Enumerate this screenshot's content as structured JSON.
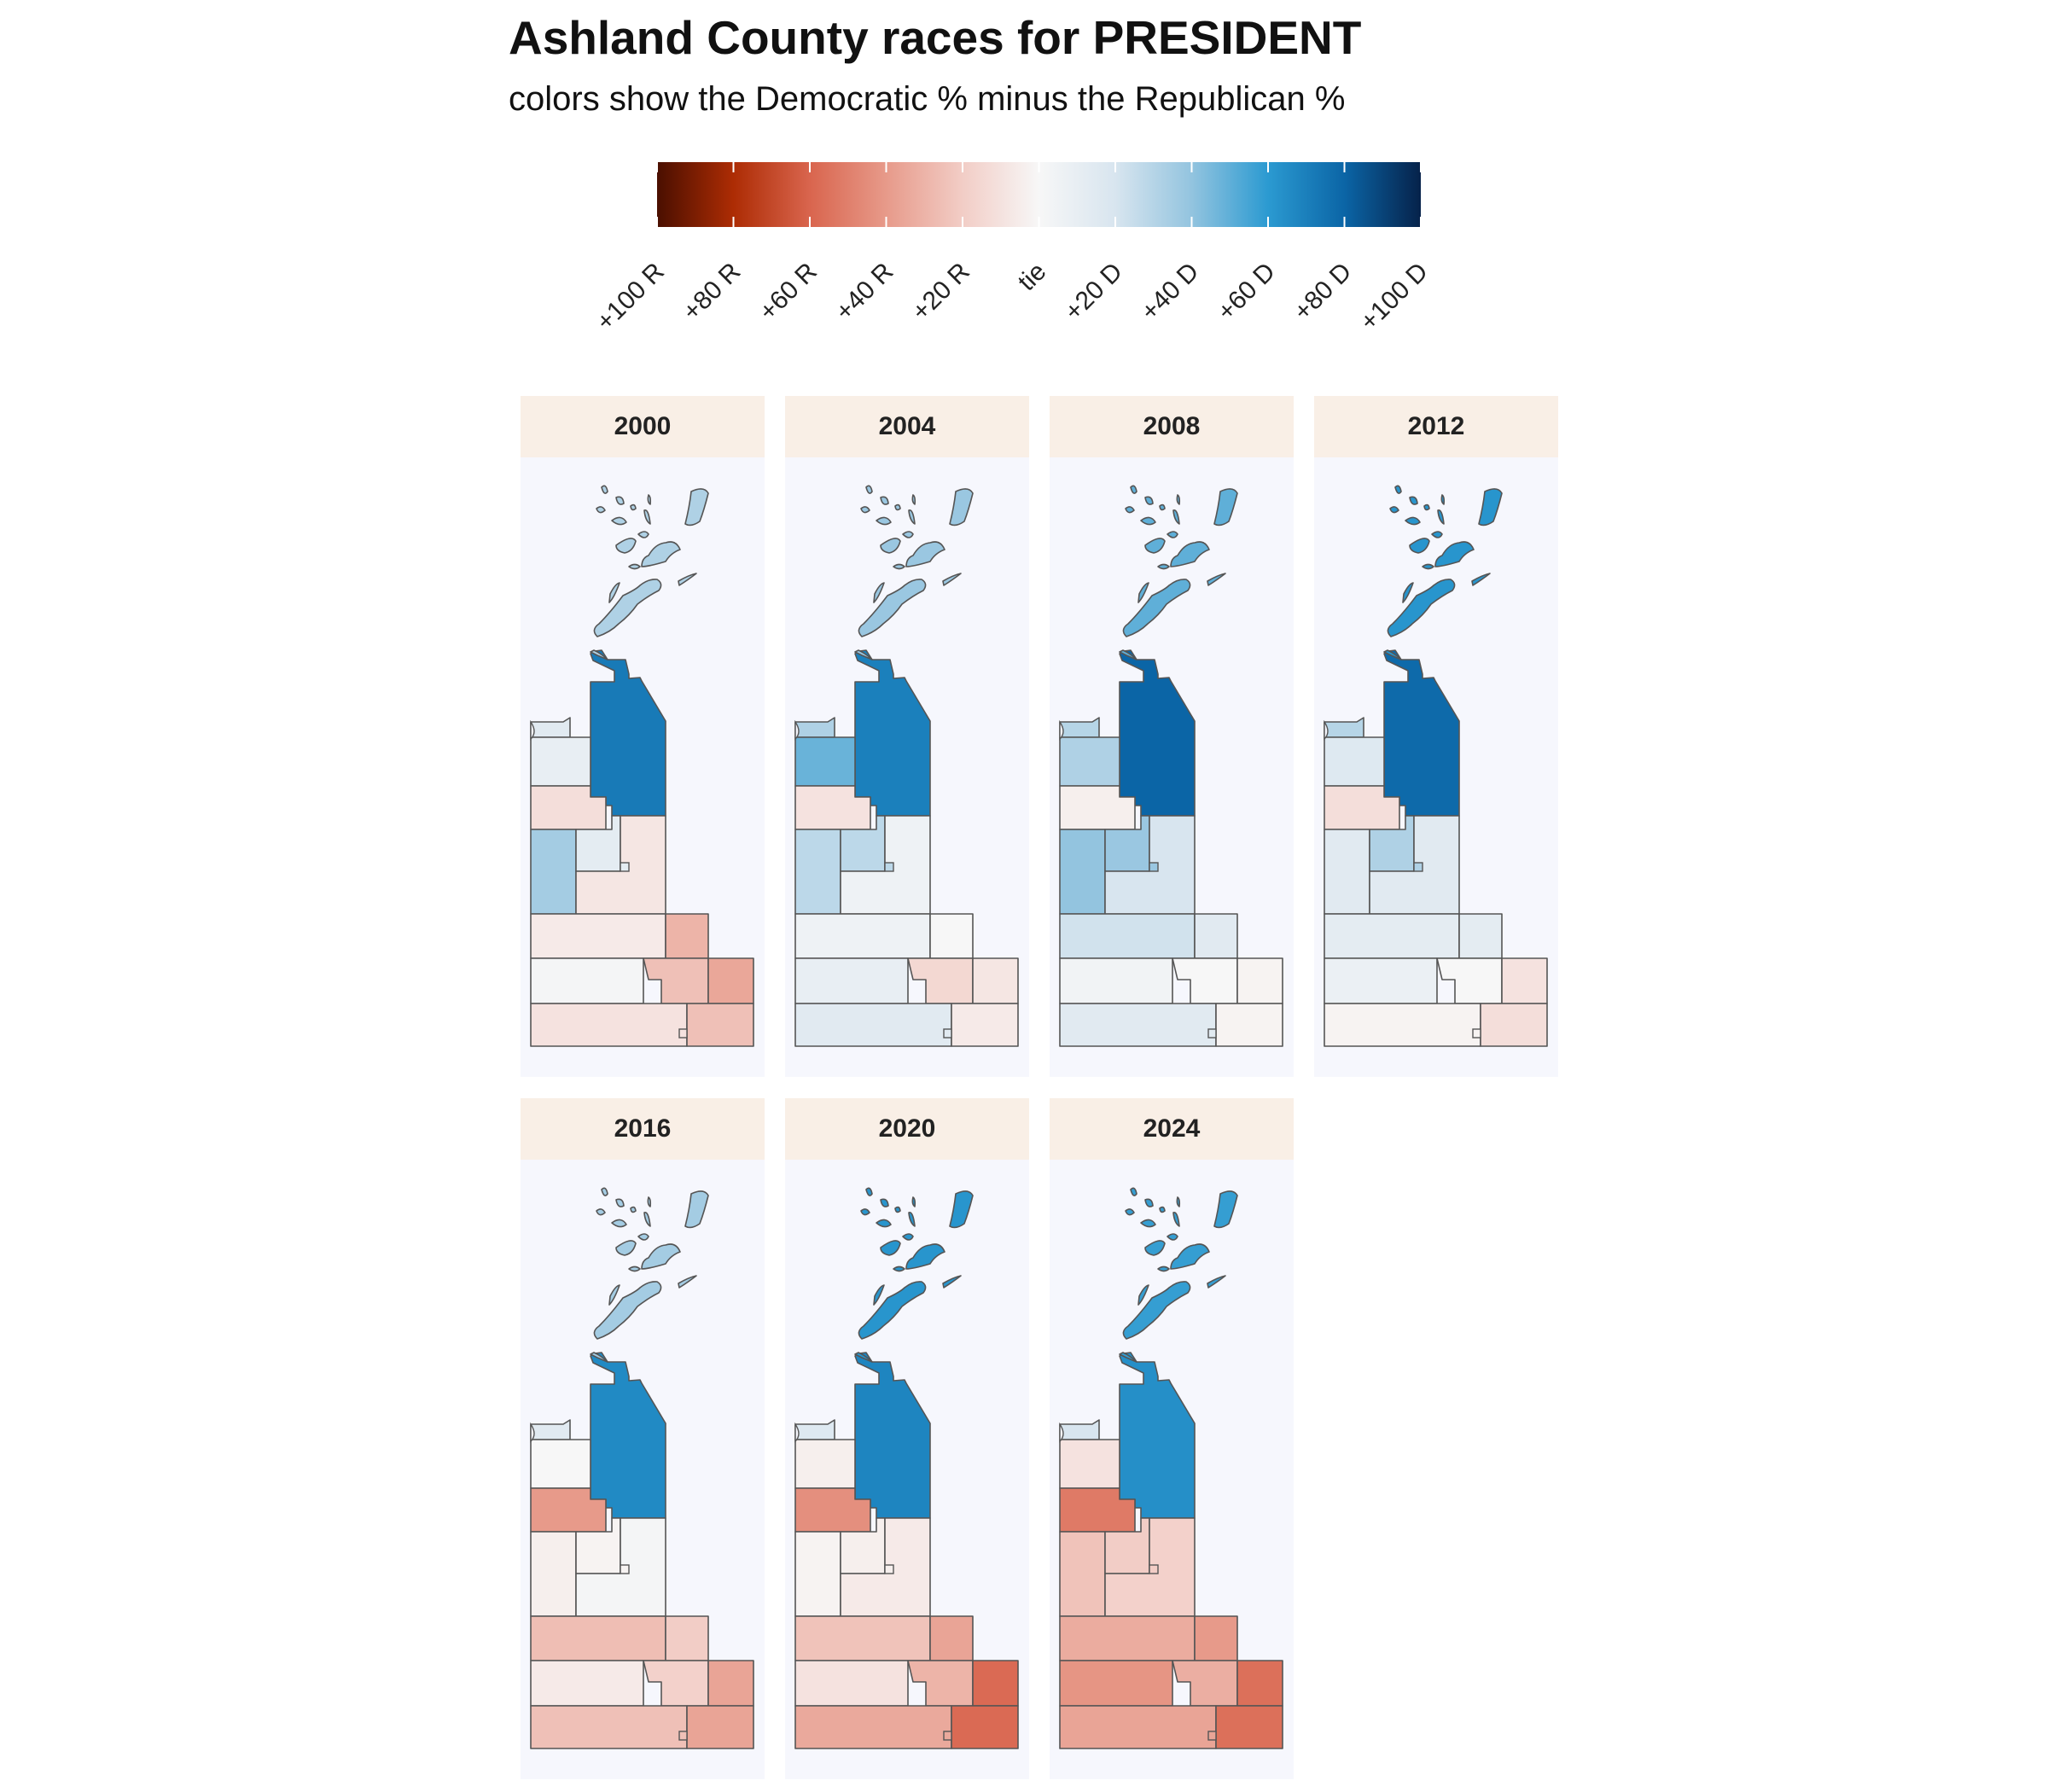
{
  "title": "Ashland County races for PRESIDENT",
  "subtitle": "colors show the Democratic % minus the Republican %",
  "legend": {
    "stops": [
      {
        "value": -100,
        "color": "#4a0f00"
      },
      {
        "value": -80,
        "color": "#ad2c04"
      },
      {
        "value": -60,
        "color": "#d9654e"
      },
      {
        "value": -40,
        "color": "#e79a8a"
      },
      {
        "value": -20,
        "color": "#f2cdc6"
      },
      {
        "value": 0,
        "color": "#f7f7f7"
      },
      {
        "value": 20,
        "color": "#d8e5ef"
      },
      {
        "value": 40,
        "color": "#93c4df"
      },
      {
        "value": 60,
        "color": "#2b9ad1"
      },
      {
        "value": 80,
        "color": "#0b65a6"
      },
      {
        "value": 100,
        "color": "#06224a"
      }
    ],
    "labels": [
      "+100 R",
      "+80 R",
      "+60 R",
      "+40 R",
      "+20 R",
      "tie",
      "+20 D",
      "+40 D",
      "+60 D",
      "+80 D",
      "+100 D"
    ]
  },
  "chart_data": {
    "type": "choropleth",
    "measure": "Democratic % minus Republican %",
    "regions": [
      "islands",
      "northeast",
      "nw-strip",
      "northwest",
      "west-mid",
      "west-south",
      "center",
      "east",
      "row1",
      "row1-e",
      "row2",
      "row2-c",
      "row2-e",
      "row3",
      "row3-e"
    ],
    "panels": [
      {
        "year": "2000",
        "margins": {
          "islands": 32,
          "northeast": 72,
          "nw-strip": 14,
          "northwest": 10,
          "west-mid": -12,
          "west-south": 35,
          "center": 12,
          "east": -8,
          "row1": -6,
          "row1-e": -30,
          "row2": 2,
          "row2-e": -35,
          "row2-c": -25,
          "row3": -10,
          "row3-e": -25
        }
      },
      {
        "year": "2004",
        "margins": {
          "islands": 38,
          "northeast": 70,
          "nw-strip": 32,
          "northwest": 48,
          "west-mid": -10,
          "west-south": 28,
          "center": 28,
          "east": 6,
          "row1": 6,
          "row1-e": 0,
          "row2": 10,
          "row2-e": -8,
          "row2-c": -15,
          "row3": 14,
          "row3-e": -6
        }
      },
      {
        "year": "2008",
        "margins": {
          "islands": 50,
          "northeast": 80,
          "nw-strip": 30,
          "northwest": 32,
          "west-mid": -4,
          "west-south": 40,
          "center": 38,
          "east": 20,
          "row1": 22,
          "row1-e": 14,
          "row2": 4,
          "row2-e": -2,
          "row2-c": 0,
          "row3": 14,
          "row3-e": -2
        }
      },
      {
        "year": "2012",
        "margins": {
          "islands": 62,
          "northeast": 78,
          "nw-strip": 30,
          "northwest": 16,
          "west-mid": -12,
          "west-south": 14,
          "center": 32,
          "east": 14,
          "row1": 12,
          "row1-e": 12,
          "row2": 8,
          "row2-e": -10,
          "row2-c": 0,
          "row3": -2,
          "row3-e": -12
        }
      },
      {
        "year": "2016",
        "margins": {
          "islands": 35,
          "northeast": 66,
          "nw-strip": 14,
          "northwest": 0,
          "west-mid": -40,
          "west-south": -4,
          "center": -2,
          "east": 2,
          "row1": -26,
          "row1-e": -20,
          "row2": -6,
          "row2-c": -18,
          "row2-e": -36,
          "row3": -25,
          "row3-e": -36
        }
      },
      {
        "year": "2020",
        "margins": {
          "islands": 62,
          "northeast": 68,
          "nw-strip": 16,
          "northwest": -4,
          "west-mid": -44,
          "west-south": -2,
          "center": -4,
          "east": -6,
          "row1": -24,
          "row1-e": -36,
          "row2": -10,
          "row2-c": -30,
          "row2-e": -58,
          "row3": -34,
          "row3-e": -58
        }
      },
      {
        "year": "2024",
        "margins": {
          "islands": 58,
          "northeast": 64,
          "nw-strip": 20,
          "northwest": -10,
          "west-mid": -52,
          "west-south": -24,
          "center": -20,
          "east": -18,
          "row1": -33,
          "row1-e": -40,
          "row2": -42,
          "row2-c": -32,
          "row2-e": -56,
          "row3": -36,
          "row3-e": -56
        }
      }
    ]
  }
}
